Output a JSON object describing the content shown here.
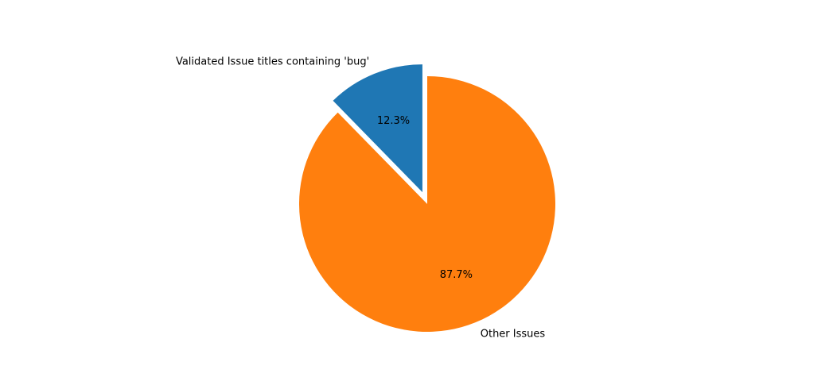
{
  "chart_data": {
    "type": "pie",
    "categories": [
      "Validated Issue titles containing 'bug'",
      "Other Issues"
    ],
    "values": [
      12.3,
      87.7
    ],
    "percent_labels": [
      "12.3%",
      "87.7%"
    ],
    "colors": [
      "#1f77b4",
      "#ff7f0e"
    ],
    "exploded": [
      true,
      false
    ],
    "start_angle_deg": 90,
    "direction": "counterclockwise",
    "title": "",
    "legend": "none"
  }
}
